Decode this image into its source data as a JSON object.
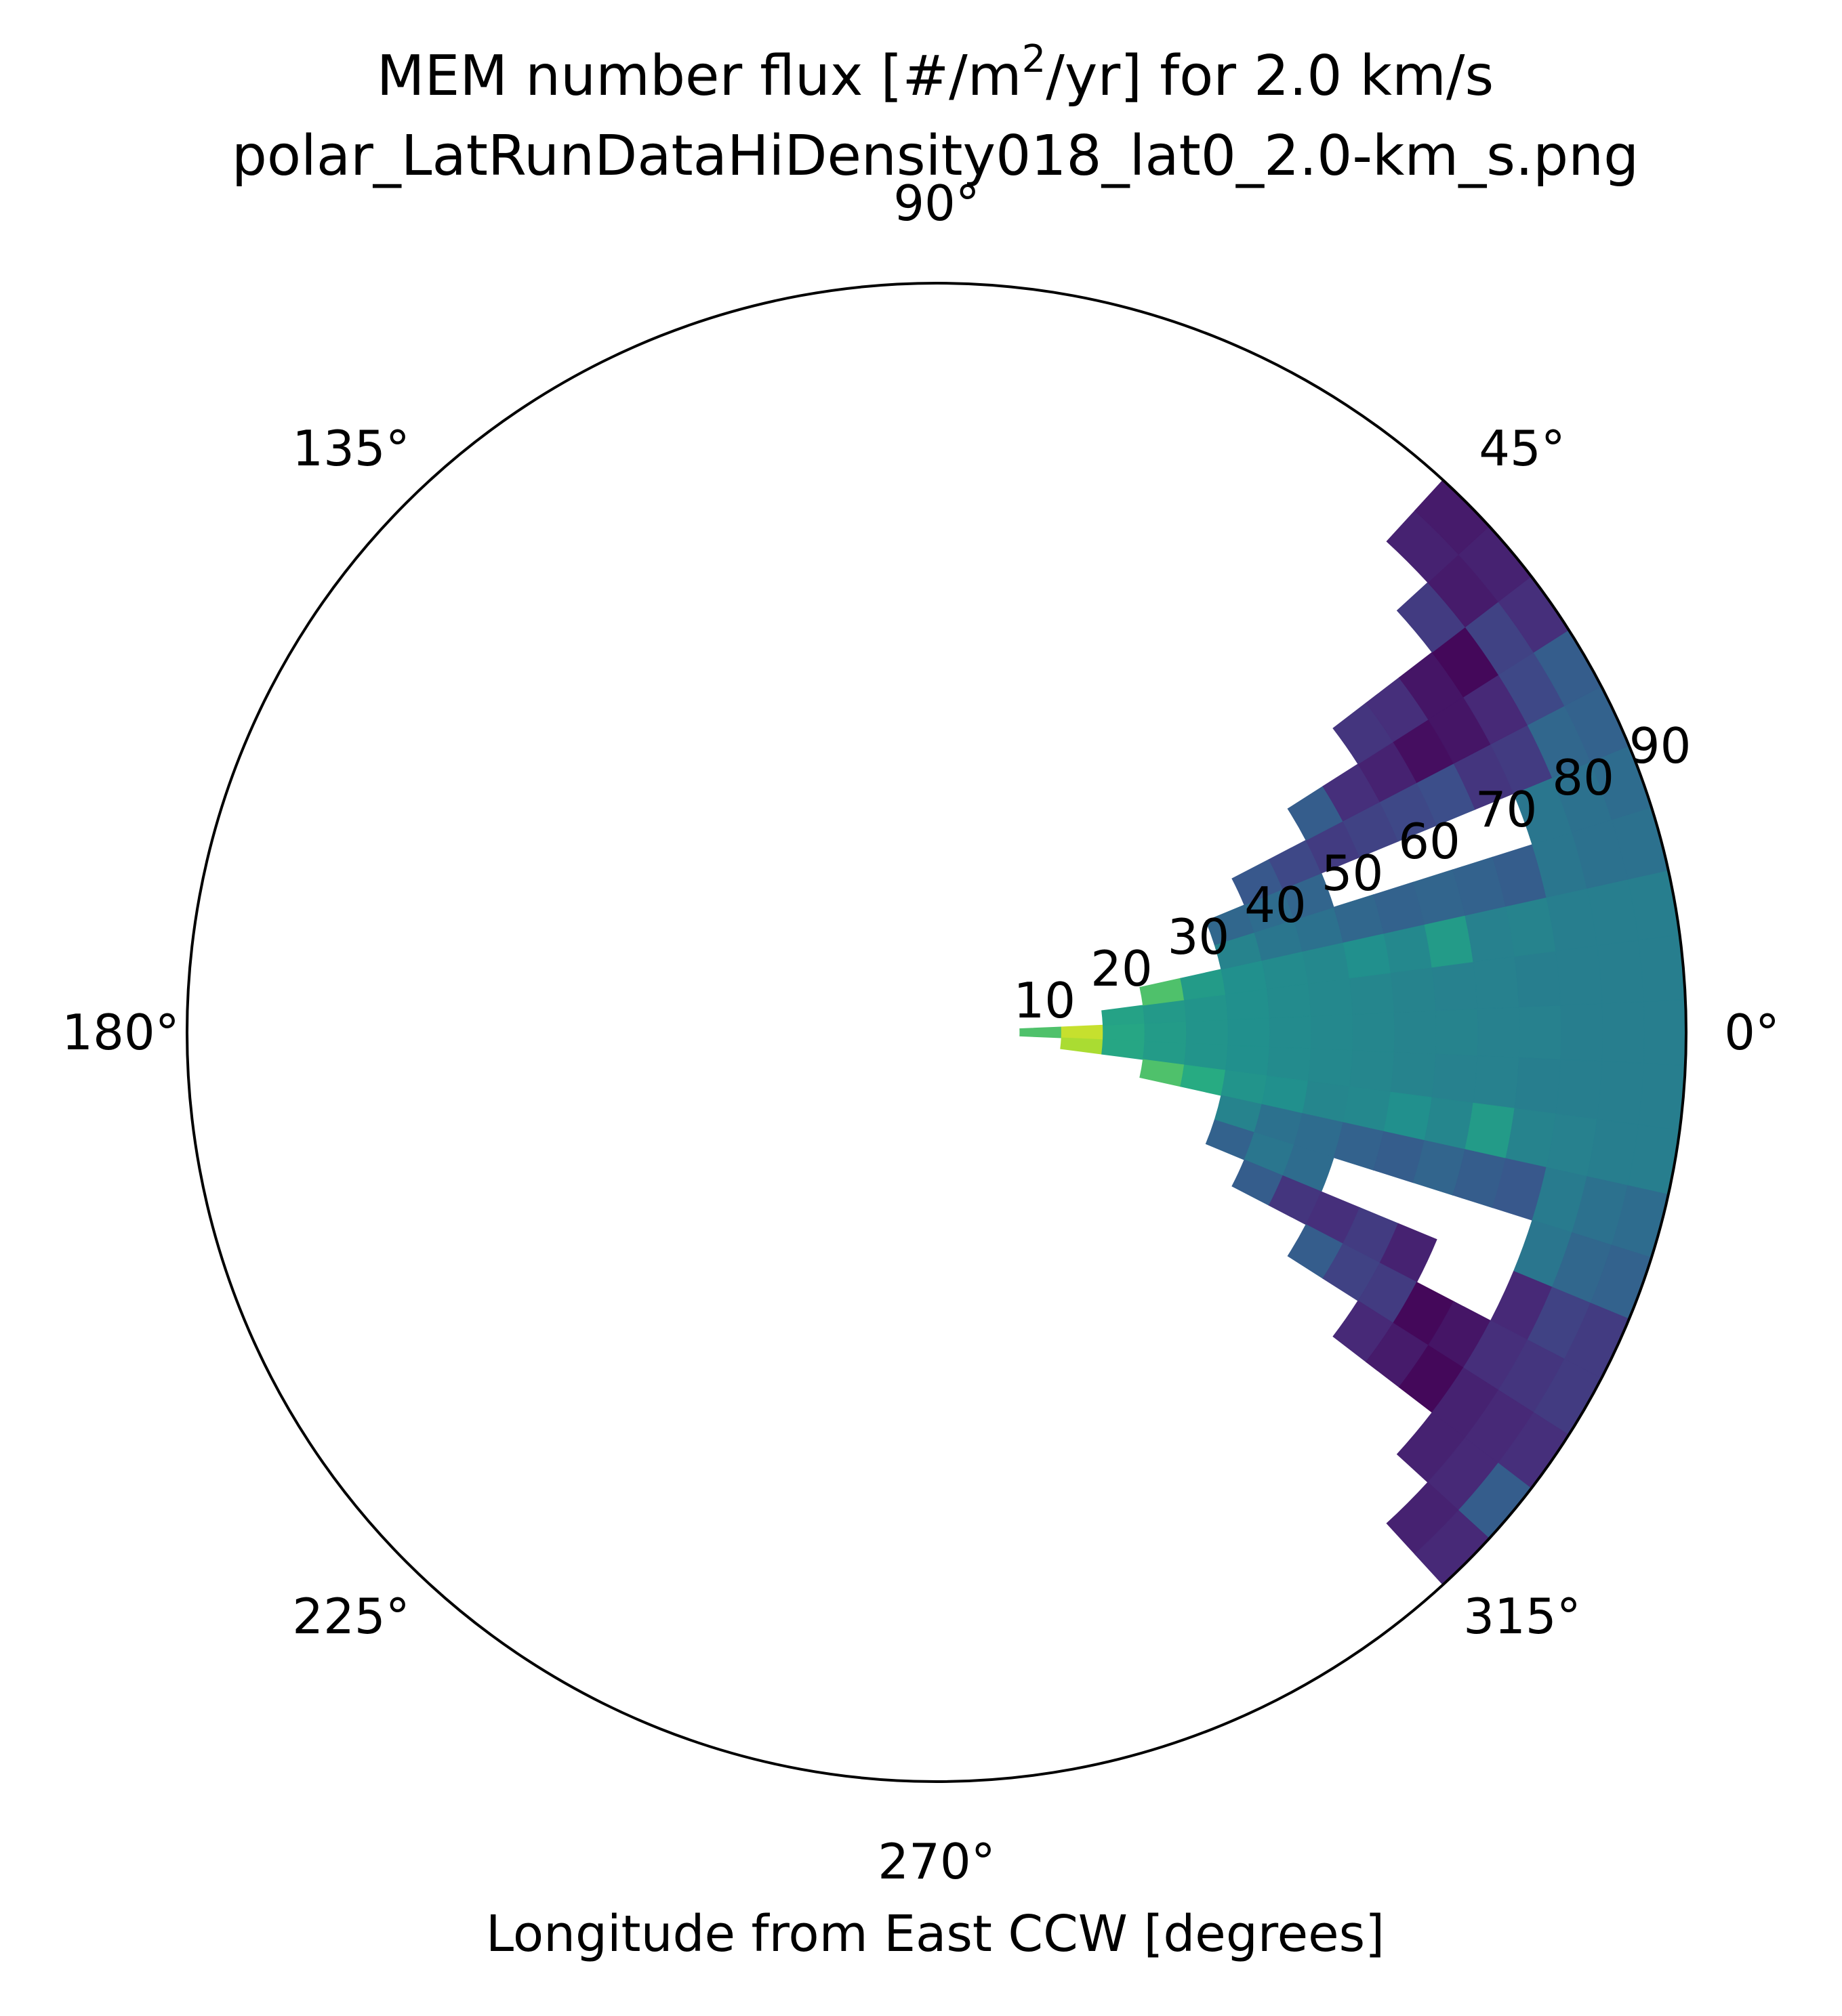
{
  "chart_data": {
    "type": "heatmap",
    "projection": "polar",
    "title_main": "MEM number flux [#/m",
    "title_sup": "2",
    "title_rest": "/yr] for 2.0 km/s",
    "subtitle": "polar_LatRunDataHiDensity018_lat0_2.0-km_s.png",
    "xlabel": "Longitude from East CCW [degrees]",
    "angle_ticks": [
      "0°",
      "45°",
      "90°",
      "135°",
      "180°",
      "225°",
      "270°",
      "315°"
    ],
    "radial_ticks": [
      "10",
      "20",
      "30",
      "40",
      "50",
      "60",
      "70",
      "80",
      "90"
    ],
    "radial_range": [
      0,
      90
    ],
    "angle_direction": "counter-clockwise from East",
    "colormap": "viridis",
    "bin_width_deg": {
      "theta": 5,
      "r": 5
    },
    "color_scale_note": "values are relative colormap levels 0-1 (no colorbar shown)",
    "bins": [
      {
        "theta": 0,
        "r_start": 10,
        "values": [
          0.72,
          0.92,
          0.6,
          0.55,
          0.52,
          0.5,
          0.48,
          0.47,
          0.46,
          0.45,
          0.45,
          0.44,
          0.44,
          0.43,
          0.43,
          0.43
        ]
      },
      {
        "theta": -5,
        "r_start": 15,
        "values": [
          0.88,
          0.6,
          0.55,
          0.52,
          0.5,
          0.48,
          0.47,
          0.46,
          0.45,
          0.44,
          0.44,
          0.43,
          0.43,
          0.43,
          0.43
        ]
      },
      {
        "theta": 5,
        "r_start": 20,
        "values": [
          0.58,
          0.54,
          0.52,
          0.5,
          0.48,
          0.47,
          0.46,
          0.45,
          0.44,
          0.44,
          0.43,
          0.43,
          0.43,
          0.43
        ]
      },
      {
        "theta": 10,
        "r_start": 25,
        "values": [
          0.72,
          0.55,
          0.5,
          0.48,
          0.47,
          0.5,
          0.47,
          0.55,
          0.44,
          0.45,
          0.43,
          0.43,
          0.43
        ]
      },
      {
        "theta": -10,
        "r_start": 25,
        "values": [
          0.72,
          0.62,
          0.52,
          0.5,
          0.46,
          0.47,
          0.5,
          0.46,
          0.55,
          0.45,
          0.44,
          0.43,
          0.43
        ]
      },
      {
        "theta": 15,
        "r_start": 35,
        "values": [
          0.45,
          0.4,
          0.38,
          0.34,
          0.32,
          0.33,
          0.32,
          0.3,
          0.4,
          0.38,
          0.38
        ]
      },
      {
        "theta": -15,
        "r_start": 35,
        "values": [
          0.45,
          0.38,
          0.36,
          0.32,
          0.3,
          0.33,
          0.3,
          0.28,
          0.42,
          0.38,
          0.36
        ]
      },
      {
        "theta": 20,
        "r_start": 35,
        "values": [
          0.34,
          0.36,
          0.33,
          null,
          null,
          null,
          null,
          null,
          0.4,
          0.38,
          0.36
        ]
      },
      {
        "theta": -20,
        "r_start": 35,
        "values": [
          0.32,
          0.4,
          0.36,
          null,
          null,
          null,
          null,
          null,
          0.4,
          0.34,
          0.32
        ]
      },
      {
        "theta": 25,
        "r_start": 40,
        "values": [
          0.28,
          0.22,
          0.18,
          0.2,
          0.22,
          0.24,
          0.16,
          0.18,
          0.34,
          0.32
        ]
      },
      {
        "theta": -25,
        "r_start": 40,
        "values": [
          0.3,
          0.16,
          0.14,
          0.18,
          0.1,
          null,
          null,
          0.12,
          0.2,
          0.18
        ]
      },
      {
        "theta": 30,
        "r_start": 50,
        "values": [
          0.3,
          0.14,
          0.1,
          0.04,
          0.06,
          0.12,
          0.22,
          0.3
        ]
      },
      {
        "theta": -30,
        "r_start": 50,
        "values": [
          0.3,
          0.2,
          0.18,
          0.02,
          0.06,
          0.14,
          0.16,
          0.18
        ]
      },
      {
        "theta": 35,
        "r_start": 60,
        "values": [
          0.16,
          0.14,
          0.06,
          0.02,
          0.2,
          0.14
        ]
      },
      {
        "theta": -35,
        "r_start": 60,
        "values": [
          0.12,
          0.08,
          0.02,
          0.1,
          0.12,
          0.14
        ]
      },
      {
        "theta": 40,
        "r_start": 75,
        "values": [
          0.18,
          0.08,
          0.1
        ]
      },
      {
        "theta": -40,
        "r_start": 75,
        "values": [
          0.1,
          0.12,
          0.3
        ]
      },
      {
        "theta": 45,
        "r_start": 80,
        "values": [
          0.1,
          0.08
        ]
      },
      {
        "theta": -45,
        "r_start": 80,
        "values": [
          0.1,
          0.12
        ]
      }
    ]
  }
}
